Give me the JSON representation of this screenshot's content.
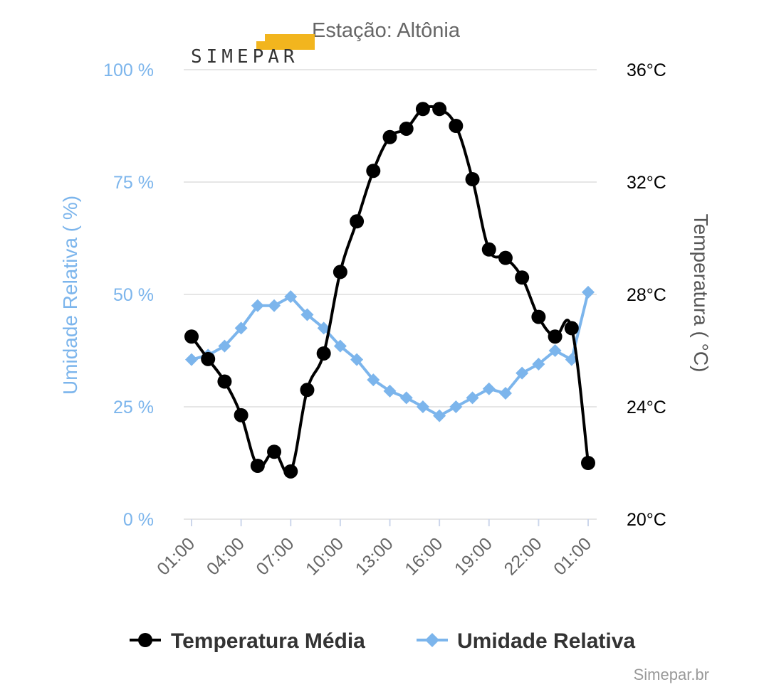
{
  "chart_data": {
    "type": "line",
    "title": "Estação: Altônia",
    "credit": "Simepar.br",
    "logo_text": "SIMEPAR",
    "x": [
      "01:00",
      "02:00",
      "03:00",
      "04:00",
      "05:00",
      "06:00",
      "07:00",
      "08:00",
      "09:00",
      "10:00",
      "11:00",
      "12:00",
      "13:00",
      "14:00",
      "15:00",
      "16:00",
      "17:00",
      "18:00",
      "19:00",
      "20:00",
      "21:00",
      "22:00",
      "23:00",
      "00:00",
      "01:00"
    ],
    "x_tick_labels": [
      "01:00",
      "04:00",
      "07:00",
      "10:00",
      "13:00",
      "16:00",
      "19:00",
      "22:00",
      "01:00"
    ],
    "y_left": {
      "label": "Umidade Relativa ( %)",
      "range": [
        0,
        100
      ],
      "ticks": [
        "0 %",
        "25 %",
        "50 %",
        "75 %",
        "100 %"
      ],
      "color": "#7cb5ec"
    },
    "y_right": {
      "label": "Temperatura ( °C)",
      "range": [
        20,
        36
      ],
      "ticks": [
        "20°C",
        "24°C",
        "28°C",
        "32°C",
        "36°C"
      ]
    },
    "series": [
      {
        "name": "Temperatura Média",
        "axis": "right",
        "color": "#000000",
        "marker": "circle",
        "values": [
          26.5,
          25.7,
          24.9,
          23.7,
          21.9,
          22.4,
          21.7,
          24.6,
          25.9,
          28.8,
          30.6,
          32.4,
          33.6,
          33.9,
          34.6,
          34.6,
          34.0,
          32.1,
          29.6,
          29.3,
          28.6,
          27.2,
          26.5,
          26.8,
          22.0
        ]
      },
      {
        "name": "Umidade Relativa",
        "axis": "left",
        "color": "#7cb5ec",
        "marker": "diamond",
        "values": [
          35.5,
          36.5,
          38.5,
          42.5,
          47.5,
          47.5,
          49.5,
          45.5,
          42.5,
          38.5,
          35.5,
          31.0,
          28.5,
          27.0,
          25.0,
          23.0,
          25.0,
          27.0,
          29.0,
          28.0,
          32.5,
          34.5,
          37.5,
          35.5,
          50.5
        ]
      }
    ],
    "grid": true,
    "legend_position": "bottom-center"
  }
}
